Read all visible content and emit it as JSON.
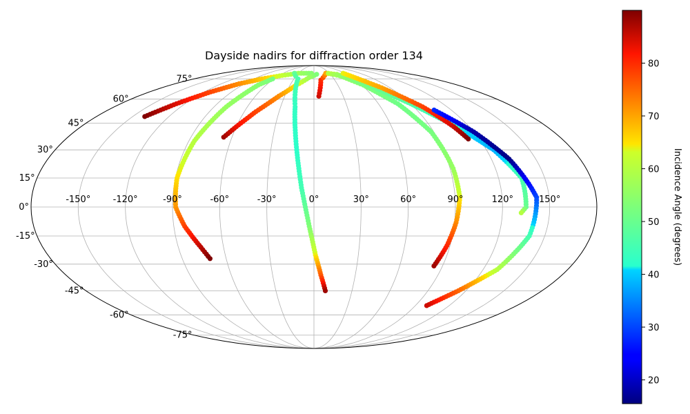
{
  "chart_data": {
    "type": "scatter",
    "projection": "mollweide",
    "title": "Dayside nadirs for diffraction order 134",
    "x_ticks": [
      "-150°",
      "-120°",
      "-90°",
      "-60°",
      "-30°",
      "0°",
      "30°",
      "60°",
      "90°",
      "120°",
      "150°"
    ],
    "y_ticks": [
      "75°",
      "60°",
      "45°",
      "30°",
      "15°",
      "0°",
      "-15°",
      "-30°",
      "-45°",
      "-60°",
      "-75°"
    ],
    "grid": true,
    "colorbar": {
      "label": "Incidence Angle (degrees)",
      "colormap": "jet",
      "range": [
        15.5,
        90
      ],
      "ticks": [
        "20",
        "30",
        "40",
        "50",
        "60",
        "70",
        "80"
      ]
    },
    "series": [
      {
        "points": [
          {
            "lon": -140,
            "lat": 49,
            "inc": 90
          },
          {
            "lon": -128,
            "lat": 57,
            "inc": 84
          },
          {
            "lon": -113,
            "lat": 65,
            "inc": 78
          },
          {
            "lon": -97,
            "lat": 71,
            "inc": 72
          },
          {
            "lon": -78,
            "lat": 75,
            "inc": 67
          },
          {
            "lon": -55,
            "lat": 78,
            "inc": 62
          },
          {
            "lon": -30,
            "lat": 80,
            "inc": 57
          },
          {
            "lon": -5,
            "lat": 80,
            "inc": 54
          }
        ]
      },
      {
        "points": [
          {
            "lon": -62,
            "lat": 75,
            "inc": 52
          },
          {
            "lon": -70,
            "lat": 70,
            "inc": 54
          },
          {
            "lon": -79,
            "lat": 55,
            "inc": 56
          },
          {
            "lon": -86,
            "lat": 35,
            "inc": 60
          },
          {
            "lon": -89,
            "lat": 15,
            "inc": 65
          },
          {
            "lon": -88,
            "lat": 0,
            "inc": 71
          },
          {
            "lon": -83,
            "lat": -10,
            "inc": 78
          },
          {
            "lon": -75,
            "lat": -21,
            "inc": 86
          },
          {
            "lon": -71,
            "lat": -27,
            "inc": 90
          }
        ]
      },
      {
        "points": [
          {
            "lon": -66,
            "lat": 37,
            "inc": 88
          },
          {
            "lon": -60,
            "lat": 43,
            "inc": 83
          },
          {
            "lon": -50,
            "lat": 52,
            "inc": 78
          },
          {
            "lon": -36,
            "lat": 62,
            "inc": 72
          },
          {
            "lon": -22,
            "lat": 70,
            "inc": 65
          },
          {
            "lon": -8,
            "lat": 76,
            "inc": 57
          },
          {
            "lon": 5,
            "lat": 79,
            "inc": 53
          }
        ]
      },
      {
        "points": [
          {
            "lon": -38,
            "lat": 80,
            "inc": 49
          },
          {
            "lon": -24,
            "lat": 75,
            "inc": 46
          },
          {
            "lon": -17,
            "lat": 55,
            "inc": 43
          },
          {
            "lon": -12,
            "lat": 30,
            "inc": 42
          },
          {
            "lon": -8,
            "lat": 10,
            "inc": 45
          },
          {
            "lon": -3,
            "lat": -10,
            "inc": 53
          },
          {
            "lon": 1,
            "lat": -25,
            "inc": 64
          },
          {
            "lon": 5,
            "lat": -36,
            "inc": 76
          },
          {
            "lon": 9,
            "lat": -45,
            "inc": 88
          }
        ]
      },
      {
        "points": [
          {
            "lon": 5,
            "lat": 62,
            "inc": 85
          },
          {
            "lon": 10,
            "lat": 74,
            "inc": 80
          },
          {
            "lon": 23,
            "lat": 80,
            "inc": 70
          },
          {
            "lon": 42,
            "lat": 79,
            "inc": 58
          },
          {
            "lon": 62,
            "lat": 70,
            "inc": 53
          },
          {
            "lon": 78,
            "lat": 57,
            "inc": 51
          },
          {
            "lon": 88,
            "lat": 40,
            "inc": 52
          },
          {
            "lon": 92,
            "lat": 20,
            "inc": 56
          },
          {
            "lon": 93,
            "lat": 5,
            "inc": 64
          },
          {
            "lon": 91,
            "lat": -8,
            "inc": 72
          },
          {
            "lon": 88,
            "lat": -20,
            "inc": 80
          },
          {
            "lon": 84,
            "lat": -31,
            "inc": 88
          }
        ]
      },
      {
        "points": [
          {
            "lon": 28,
            "lat": 80,
            "inc": 60
          },
          {
            "lon": 48,
            "lat": 77,
            "inc": 55
          },
          {
            "lon": 68,
            "lat": 70,
            "inc": 51
          },
          {
            "lon": 90,
            "lat": 57,
            "inc": 47
          },
          {
            "lon": 110,
            "lat": 43,
            "inc": 42
          },
          {
            "lon": 125,
            "lat": 30,
            "inc": 38
          },
          {
            "lon": 135,
            "lat": 15,
            "inc": 45
          },
          {
            "lon": 135,
            "lat": 0,
            "inc": 50
          },
          {
            "lon": 132,
            "lat": -3,
            "inc": 60
          }
        ]
      },
      {
        "points": [
          {
            "lon": 57,
            "lat": 80,
            "inc": 64
          },
          {
            "lon": 80,
            "lat": 68,
            "inc": 70
          },
          {
            "lon": 98,
            "lat": 55,
            "inc": 78
          },
          {
            "lon": 108,
            "lat": 43,
            "inc": 85
          },
          {
            "lon": 112,
            "lat": 36,
            "inc": 90
          }
        ]
      },
      {
        "points": [
          {
            "lon": 105,
            "lat": 53,
            "inc": 28
          },
          {
            "lon": 120,
            "lat": 40,
            "inc": 18
          },
          {
            "lon": 132,
            "lat": 25,
            "inc": 16
          },
          {
            "lon": 142,
            "lat": 5,
            "inc": 30
          },
          {
            "lon": 140,
            "lat": -15,
            "inc": 45
          },
          {
            "lon": 130,
            "lat": -33,
            "inc": 60
          },
          {
            "lon": 114,
            "lat": -45,
            "inc": 75
          },
          {
            "lon": 100,
            "lat": -54,
            "inc": 85
          }
        ]
      }
    ]
  }
}
